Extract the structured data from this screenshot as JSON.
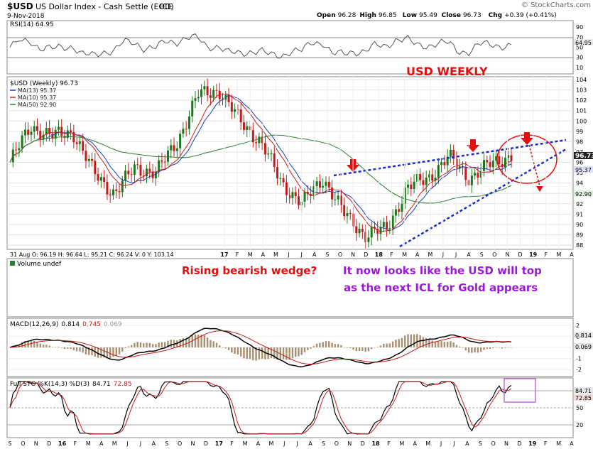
{
  "header": {
    "symbol": "$USD",
    "name": "US Dollar Index - Cash Settle (EOD)",
    "exchange": "ICE",
    "date": "9-Nov-2018",
    "ohlc": [
      {
        "k": "Open",
        "v": "96.28"
      },
      {
        "k": "High",
        "v": "96.85"
      },
      {
        "k": "Low",
        "v": "95.49"
      },
      {
        "k": "Close",
        "v": "96.73"
      },
      {
        "k": "Chg",
        "v": "+0.39 (+0.41%)"
      }
    ],
    "source": "© StockCharts.com"
  },
  "rsi": {
    "title": "RSI(14) 64.95",
    "ticks": [
      "90",
      "70",
      "50",
      "30",
      "10"
    ],
    "value_label": "64.95"
  },
  "price": {
    "title": "$USD (Weekly) 96.73",
    "legend": [
      {
        "label": "MA(13) 95.37",
        "color": "#1a3fb5"
      },
      {
        "label": "MA(10) 95.37",
        "color": "#c41c1c"
      },
      {
        "label": "MA(50) 92.90",
        "color": "#2e7d32"
      }
    ],
    "ticks": [
      "104",
      "103",
      "102",
      "101",
      "100",
      "99",
      "98",
      "97",
      "96",
      "95",
      "94",
      "93",
      "92",
      "91",
      "90",
      "89",
      "88"
    ],
    "badges": {
      "last": "96.73",
      "ma": "95.37",
      "ma50": "92.90"
    },
    "watermark": "USD WEEKLY",
    "info_line": "31 Aug O: 96.19   H: 96.64   L: 95.21   C: 96.24   V: 0   Y: 103.14",
    "year_axis": [
      "17",
      "F",
      "M",
      "A",
      "M",
      "J",
      "J",
      "A",
      "S",
      "O",
      "N",
      "D",
      "18",
      "F",
      "M",
      "A",
      "M",
      "J",
      "J",
      "A",
      "S",
      "O",
      "N",
      "D",
      "19",
      "F",
      "M",
      "A"
    ]
  },
  "volume": {
    "title": "Volume undef",
    "annotation_red": "Rising bearish wedge?",
    "annotation_purple_1": "It now looks like the USD will top",
    "annotation_purple_2": "as the next ICL for Gold appears"
  },
  "macd": {
    "title": "MACD(12,26,9)",
    "v1": "0.814",
    "v2": "0.745",
    "v3": "0.069",
    "ticks": [
      "2",
      "1",
      "0",
      "-1",
      "-2"
    ],
    "badges": {
      "a": "0.814",
      "b": "0.069"
    }
  },
  "sto": {
    "title": "Full STO %K(14,3) %D(3)",
    "v1": "84.71",
    "v2": "72.85",
    "ticks": [
      "80",
      "50",
      "20"
    ],
    "badges": {
      "a": "84.71",
      "b": "72.85"
    }
  },
  "bottom_axis": [
    "S",
    "O",
    "N",
    "D",
    "16",
    "F",
    "M",
    "A",
    "M",
    "J",
    "J",
    "A",
    "S",
    "O",
    "N",
    "D",
    "17",
    "F",
    "M",
    "A",
    "M",
    "J",
    "J",
    "A",
    "S",
    "O",
    "N",
    "D",
    "18",
    "F",
    "M",
    "A",
    "M",
    "J",
    "J",
    "A",
    "S",
    "O",
    "N",
    "D",
    "19",
    "F",
    "M",
    "A"
  ],
  "chart_data": {
    "type": "line",
    "title": "$USD (Weekly)",
    "timeframe": "Weekly, Sep 2015 – Nov 2018",
    "price_series_approx": [
      {
        "date": "2015-09",
        "close": 96.0
      },
      {
        "date": "2015-11",
        "close": 99.5
      },
      {
        "date": "2015-12",
        "close": 98.5
      },
      {
        "date": "2016-01",
        "close": 99.0
      },
      {
        "date": "2016-03",
        "close": 95.0
      },
      {
        "date": "2016-05",
        "close": 93.0
      },
      {
        "date": "2016-06",
        "close": 95.5
      },
      {
        "date": "2016-08",
        "close": 95.0
      },
      {
        "date": "2016-10",
        "close": 98.0
      },
      {
        "date": "2016-12",
        "close": 102.5
      },
      {
        "date": "2017-01",
        "close": 103.0
      },
      {
        "date": "2017-03",
        "close": 100.0
      },
      {
        "date": "2017-05",
        "close": 98.0
      },
      {
        "date": "2017-07",
        "close": 94.0
      },
      {
        "date": "2017-09",
        "close": 92.0
      },
      {
        "date": "2017-11",
        "close": 94.5
      },
      {
        "date": "2018-01",
        "close": 91.0
      },
      {
        "date": "2018-02",
        "close": 89.0
      },
      {
        "date": "2018-03",
        "close": 89.5
      },
      {
        "date": "2018-05",
        "close": 93.5
      },
      {
        "date": "2018-07",
        "close": 94.5
      },
      {
        "date": "2018-08",
        "close": 96.5
      },
      {
        "date": "2018-09",
        "close": 94.5
      },
      {
        "date": "2018-10",
        "close": 95.8
      },
      {
        "date": "2018-11",
        "close": 96.73
      }
    ],
    "moving_averages_last": {
      "MA(13)": 95.37,
      "MA(10)": 95.37,
      "MA(50)": 92.9
    },
    "rsi_last": 64.95,
    "macd_last": {
      "macd": 0.814,
      "signal": 0.745,
      "histogram": 0.069
    },
    "sto_last": {
      "k": 84.71,
      "d": 72.85
    },
    "ylim": [
      88,
      104
    ]
  }
}
